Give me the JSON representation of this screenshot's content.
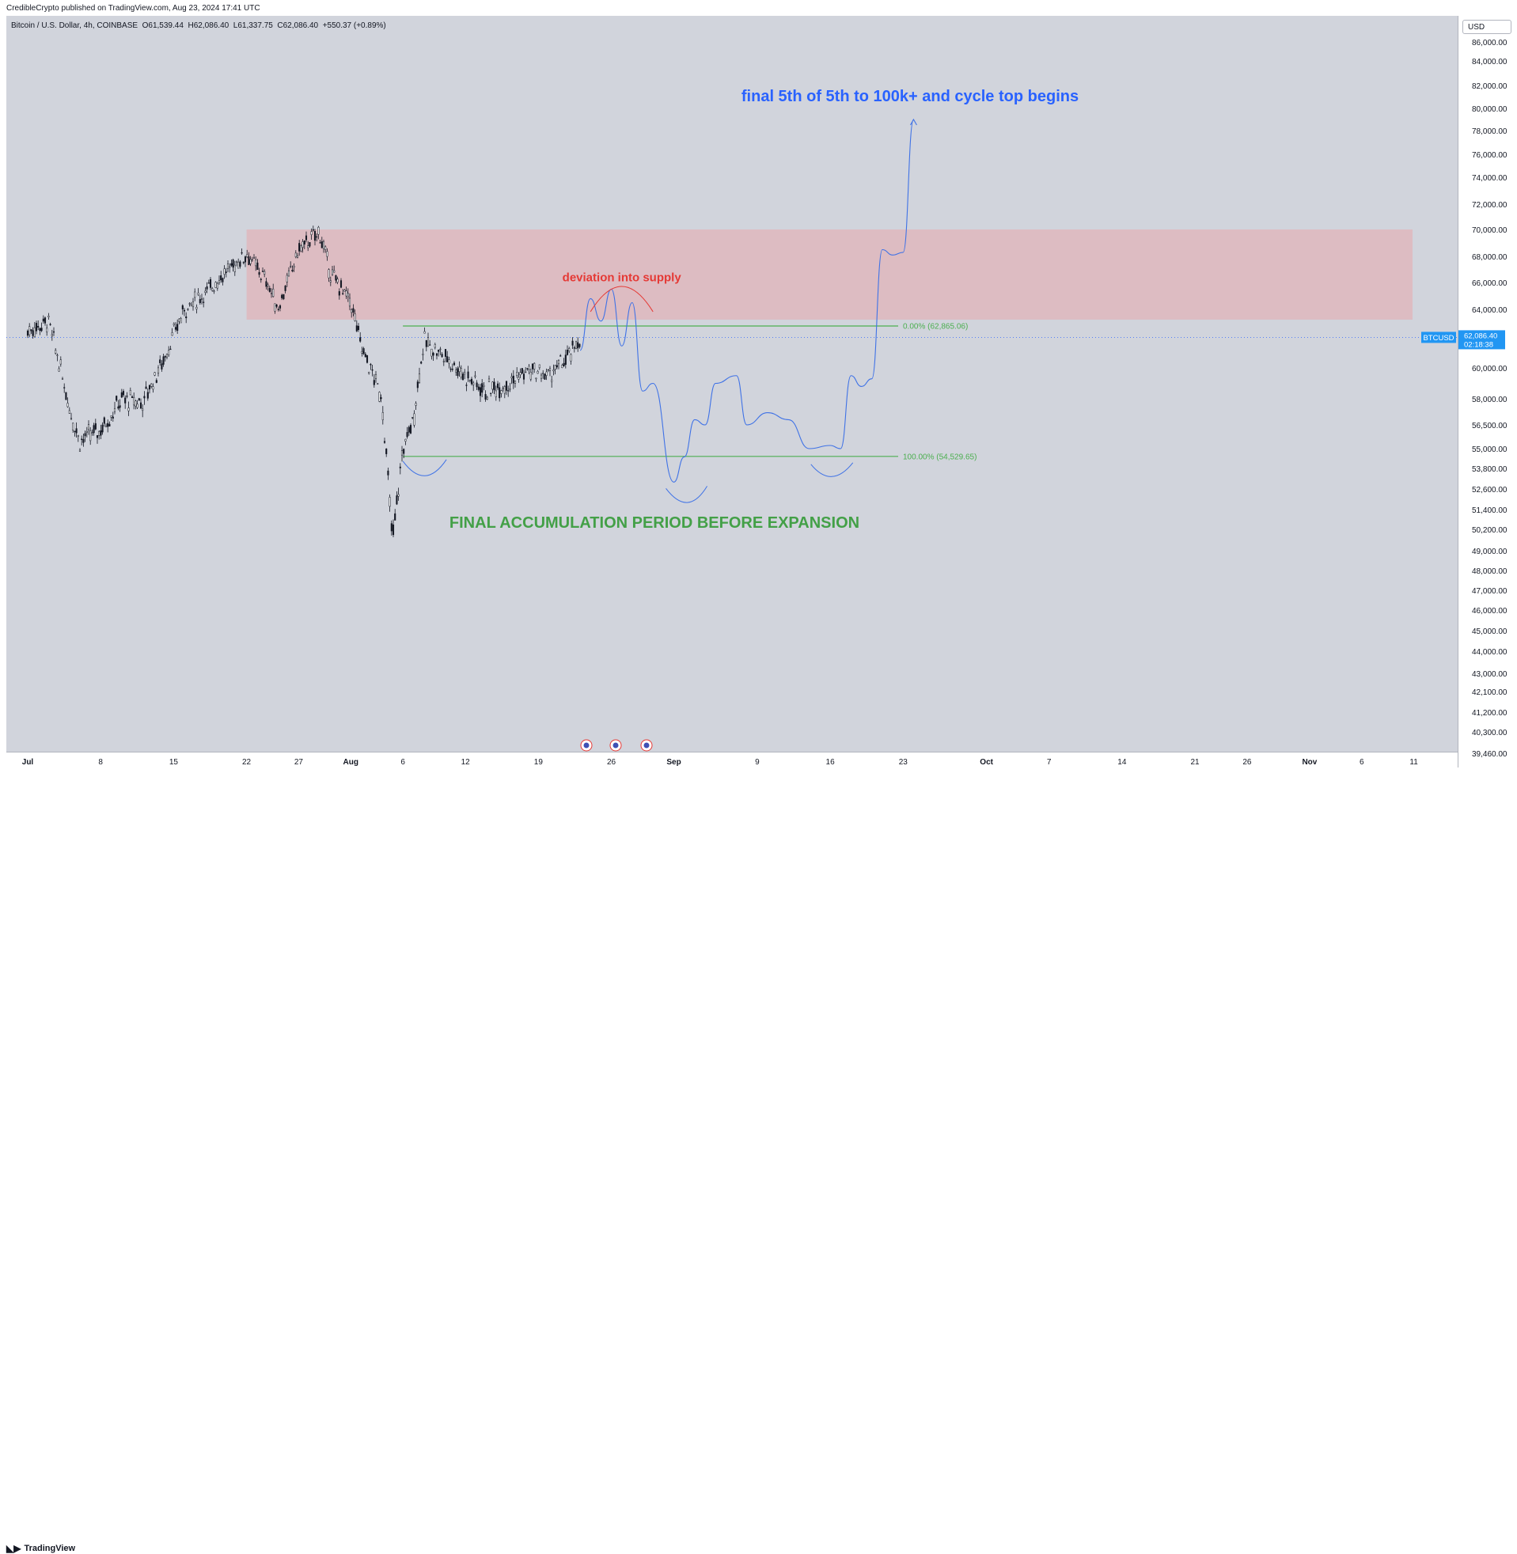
{
  "header": {
    "publisher": "CredibleCrypto published on TradingView.com, Aug 23, 2024 17:41 UTC",
    "symbol_desc": "Bitcoin / U.S. Dollar, 4h, COINBASE",
    "open_label": "O",
    "open": "61,539.44",
    "high_label": "H",
    "high": "62,086.40",
    "low_label": "L",
    "low": "61,337.75",
    "close_label": "C",
    "close": "62,086.40",
    "change": "+550.37 (+0.89%)"
  },
  "currency": "USD",
  "ticker": {
    "symbol": "BTCUSD",
    "price": "62,086.40",
    "countdown": "02:18:38"
  },
  "footer": {
    "brand": "TradingView"
  },
  "colors": {
    "background": "#d1d4dc",
    "supply_zone": "#e8a7ad",
    "fib_line": "#4caf50",
    "projection": "#3f72e6",
    "candle": "#131722",
    "annotation_red": "#e53935",
    "annotation_blue": "#2962ff",
    "annotation_green": "#43a047"
  },
  "chart_data": {
    "type": "line",
    "series_note": "BTC 4h candlesticks with projected path",
    "yaxis_ticks": [
      "86,000.00",
      "84,000.00",
      "82,000.00",
      "80,000.00",
      "78,000.00",
      "76,000.00",
      "74,000.00",
      "72,000.00",
      "70,000.00",
      "68,000.00",
      "66,000.00",
      "64,000.00",
      "60,000.00",
      "58,000.00",
      "56,500.00",
      "55,000.00",
      "53,800.00",
      "52,600.00",
      "51,400.00",
      "50,200.00",
      "49,000.00",
      "48,000.00",
      "47,000.00",
      "46,000.00",
      "45,000.00",
      "44,000.00",
      "43,000.00",
      "42,100.00",
      "41,200.00",
      "40,300.00",
      "39,460.00"
    ],
    "xaxis_ticks": [
      "Jul",
      "8",
      "15",
      "22",
      "27",
      "Aug",
      "6",
      "12",
      "19",
      "26",
      "Sep",
      "9",
      "16",
      "23",
      "Oct",
      "7",
      "14",
      "21",
      "26",
      "Nov",
      "6",
      "11"
    ],
    "supply_zone": {
      "low": 63300,
      "high": 70000
    },
    "fib_levels": [
      {
        "label": "0.00% (62,865.06)",
        "value": 62865.06
      },
      {
        "label": "100.00% (54,529.65)",
        "value": 54529.65
      }
    ],
    "annotations": {
      "deviation": "deviation into supply",
      "target": "final 5th of 5th to 100k+ and cycle top begins",
      "accumulation": "FINAL ACCUMULATION PERIOD BEFORE EXPANSION"
    },
    "price_path": [
      [
        "Jul 1",
        62500
      ],
      [
        "Jul 3",
        63200
      ],
      [
        "Jul 5",
        57500
      ],
      [
        "Jul 6",
        55500
      ],
      [
        "Jul 8",
        56200
      ],
      [
        "Jul 10",
        58000
      ],
      [
        "Jul 12",
        57800
      ],
      [
        "Jul 14",
        60500
      ],
      [
        "Jul 16",
        64000
      ],
      [
        "Jul 18",
        65200
      ],
      [
        "Jul 20",
        66800
      ],
      [
        "Jul 22",
        68200
      ],
      [
        "Jul 24",
        66000
      ],
      [
        "Jul 25",
        64000
      ],
      [
        "Jul 27",
        68500
      ],
      [
        "Jul 29",
        69800
      ],
      [
        "Jul 30",
        66800
      ],
      [
        "Aug 1",
        64500
      ],
      [
        "Aug 2",
        61500
      ],
      [
        "Aug 4",
        58000
      ],
      [
        "Aug 5",
        49500
      ],
      [
        "Aug 6",
        55000
      ],
      [
        "Aug 7",
        56800
      ],
      [
        "Aug 8",
        61800
      ],
      [
        "Aug 10",
        60800
      ],
      [
        "Aug 12",
        59500
      ],
      [
        "Aug 14",
        58500
      ],
      [
        "Aug 16",
        59000
      ],
      [
        "Aug 18",
        59800
      ],
      [
        "Aug 20",
        59500
      ],
      [
        "Aug 22",
        60800
      ],
      [
        "Aug 23",
        62086
      ]
    ],
    "projection_path": [
      [
        "Aug 23",
        61200
      ],
      [
        "Aug 24",
        64800
      ],
      [
        "Aug 25",
        63200
      ],
      [
        "Aug 26",
        65500
      ],
      [
        "Aug 27",
        61500
      ],
      [
        "Aug 28",
        64500
      ],
      [
        "Aug 29",
        58500
      ],
      [
        "Aug 30",
        59000
      ],
      [
        "Sep 1",
        53000
      ],
      [
        "Sep 2",
        54500
      ],
      [
        "Sep 3",
        56800
      ],
      [
        "Sep 4",
        56500
      ],
      [
        "Sep 5",
        59000
      ],
      [
        "Sep 7",
        59500
      ],
      [
        "Sep 8",
        56500
      ],
      [
        "Sep 10",
        57200
      ],
      [
        "Sep 12",
        56800
      ],
      [
        "Sep 14",
        55000
      ],
      [
        "Sep 16",
        55200
      ],
      [
        "Sep 17",
        55000
      ],
      [
        "Sep 18",
        59500
      ],
      [
        "Sep 19",
        58800
      ],
      [
        "Sep 20",
        59300
      ],
      [
        "Sep 21",
        68500
      ],
      [
        "Sep 22",
        68100
      ],
      [
        "Sep 23",
        68300
      ],
      [
        "Sep 24",
        79000
      ]
    ]
  }
}
